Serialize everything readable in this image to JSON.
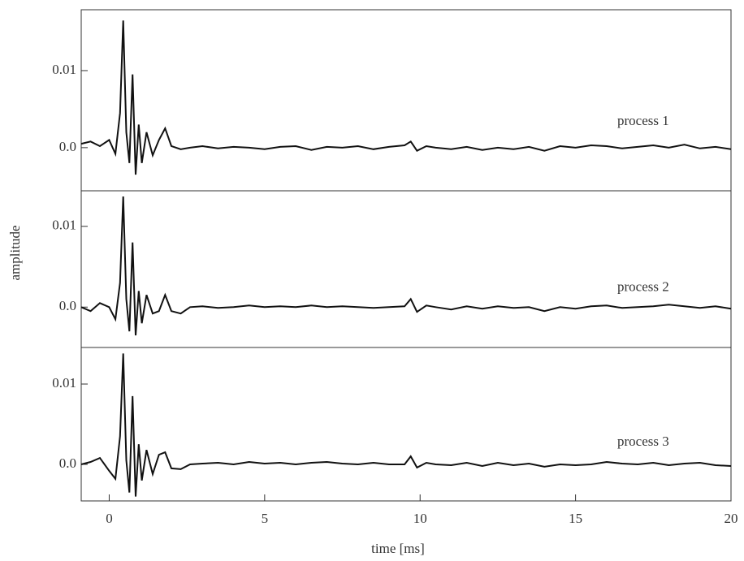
{
  "chart_data": [
    {
      "type": "line",
      "x": [
        -0.9,
        -0.6,
        -0.3,
        0,
        0.2,
        0.35,
        0.45,
        0.55,
        0.65,
        0.75,
        0.85,
        0.95,
        1.05,
        1.2,
        1.4,
        1.6,
        1.8,
        2.0,
        2.3,
        2.6,
        3,
        3.5,
        4,
        4.5,
        5,
        5.5,
        6,
        6.5,
        7,
        7.5,
        8,
        8.5,
        9,
        9.5,
        9.7,
        9.9,
        10.2,
        10.5,
        11,
        11.5,
        12,
        12.5,
        13,
        13.5,
        14,
        14.5,
        15,
        15.5,
        16,
        16.5,
        17,
        17.5,
        18,
        18.5,
        19,
        19.5,
        20
      ],
      "series": [
        {
          "name": "process 1",
          "color": "#111111",
          "values": [
            0.0005,
            0.0008,
            0.0002,
            0.001,
            -0.0008,
            0.0045,
            0.0165,
            0.002,
            -0.002,
            0.0095,
            -0.0035,
            0.003,
            -0.002,
            0.002,
            -0.001,
            0.001,
            0.0025,
            0.0002,
            -0.0002,
            0.0,
            0.0002,
            -0.0001,
            0.0001,
            0.0,
            -0.0002,
            0.0001,
            0.0002,
            -0.0003,
            0.0001,
            0.0,
            0.0002,
            -0.0002,
            0.0001,
            0.0003,
            0.0008,
            -0.0004,
            0.0002,
            0.0,
            -0.0002,
            0.0001,
            -0.0003,
            0.0,
            -0.0002,
            0.0001,
            -0.0004,
            0.0002,
            0.0,
            0.0003,
            0.0002,
            -0.0001,
            0.0001,
            0.0003,
            0.0,
            0.0004,
            -0.0001,
            0.0001,
            -0.0002
          ]
        }
      ],
      "xlim": [
        -0.9,
        20
      ],
      "ylim": [
        -0.0056,
        0.0179
      ],
      "yticks": [
        {
          "value": 0,
          "label": "0.0"
        },
        0.01
      ]
    },
    {
      "type": "line",
      "x": [
        -0.9,
        -0.6,
        -0.3,
        0,
        0.2,
        0.35,
        0.45,
        0.55,
        0.65,
        0.75,
        0.85,
        0.95,
        1.05,
        1.2,
        1.4,
        1.6,
        1.8,
        2.0,
        2.3,
        2.6,
        3,
        3.5,
        4,
        4.5,
        5,
        5.5,
        6,
        6.5,
        7,
        7.5,
        8,
        8.5,
        9,
        9.5,
        9.7,
        9.9,
        10.2,
        10.5,
        11,
        11.5,
        12,
        12.5,
        13,
        13.5,
        14,
        14.5,
        15,
        15.5,
        16,
        16.5,
        17,
        17.5,
        18,
        18.5,
        19,
        19.5,
        20
      ],
      "series": [
        {
          "name": "process 2",
          "color": "#111111",
          "values": [
            0.0,
            -0.0005,
            0.0005,
            0.0,
            -0.0015,
            0.003,
            0.0137,
            0.001,
            -0.003,
            0.008,
            -0.0035,
            0.002,
            -0.002,
            0.0015,
            -0.0008,
            -0.0005,
            0.0015,
            -0.0005,
            -0.0008,
            0.0,
            0.0001,
            -0.0001,
            0.0,
            0.0002,
            0.0,
            0.0001,
            0.0,
            0.0002,
            0.0,
            0.0001,
            0.0,
            -0.0001,
            0.0,
            0.0001,
            0.001,
            -0.0006,
            0.0002,
            0.0,
            -0.0003,
            0.0001,
            -0.0002,
            0.0001,
            -0.0001,
            0.0,
            -0.0005,
            0.0,
            -0.0002,
            0.0001,
            0.0002,
            -0.0001,
            0.0,
            0.0001,
            0.0003,
            0.0001,
            -0.0001,
            0.0001,
            -0.0002
          ]
        }
      ],
      "ylabel": "amplitude",
      "xlim": [
        -0.9,
        20
      ],
      "ylim": [
        -0.005,
        0.0144
      ],
      "yticks": [
        {
          "value": 0,
          "label": "0.0"
        },
        0.01
      ]
    },
    {
      "type": "line",
      "x": [
        -0.9,
        -0.6,
        -0.3,
        0,
        0.2,
        0.35,
        0.45,
        0.55,
        0.65,
        0.75,
        0.85,
        0.95,
        1.05,
        1.2,
        1.4,
        1.6,
        1.8,
        2.0,
        2.3,
        2.6,
        3,
        3.5,
        4,
        4.5,
        5,
        5.5,
        6,
        6.5,
        7,
        7.5,
        8,
        8.5,
        9,
        9.5,
        9.7,
        9.9,
        10.2,
        10.5,
        11,
        11.5,
        12,
        12.5,
        13,
        13.5,
        14,
        14.5,
        15,
        15.5,
        16,
        16.5,
        17,
        17.5,
        18,
        18.5,
        19,
        19.5,
        20
      ],
      "series": [
        {
          "name": "process 3",
          "color": "#111111",
          "values": [
            0.0,
            0.0003,
            0.0008,
            -0.0008,
            -0.0018,
            0.0035,
            0.0138,
            0.0005,
            -0.0035,
            0.0085,
            -0.004,
            0.0025,
            -0.002,
            0.0018,
            -0.0012,
            0.0012,
            0.0015,
            -0.0005,
            -0.0006,
            0.0,
            0.0001,
            0.0002,
            0.0,
            0.0003,
            0.0001,
            0.0002,
            0.0,
            0.0002,
            0.0003,
            0.0001,
            0.0,
            0.0002,
            0.0,
            0.0,
            0.001,
            -0.0004,
            0.0002,
            0.0,
            -0.0001,
            0.0002,
            -0.0002,
            0.0002,
            -0.0001,
            0.0001,
            -0.0003,
            0.0,
            -0.0001,
            0.0,
            0.0003,
            0.0001,
            0.0,
            0.0002,
            -0.0001,
            0.0001,
            0.0002,
            -0.0001,
            -0.0002
          ]
        }
      ],
      "xlabel": "time [ms]",
      "xlim": [
        -0.9,
        20
      ],
      "ylim": [
        -0.00455,
        0.01455
      ],
      "yticks": [
        {
          "value": 0,
          "label": "0.0"
        },
        0.01
      ],
      "xticks": [
        0,
        5,
        10,
        15,
        20
      ]
    }
  ]
}
